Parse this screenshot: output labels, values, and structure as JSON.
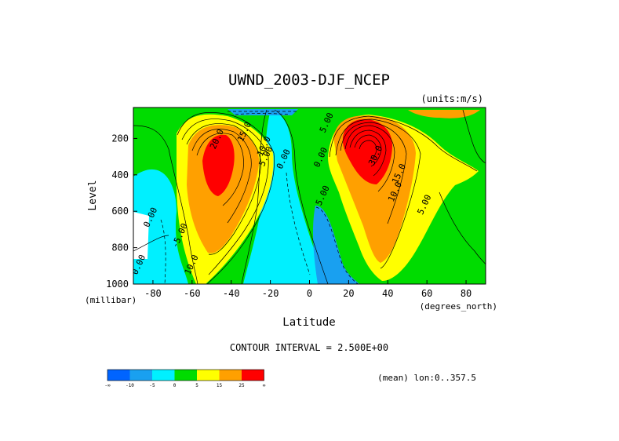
{
  "chart_data": {
    "type": "heatmap",
    "title": "UWND_2003-DJF_NCEP",
    "units_label": "(units:m/s)",
    "xlabel": "Latitude",
    "ylabel": "Level",
    "x_unit_label": "(degrees_north)",
    "y_unit_label": "(millibar)",
    "xlim": [
      -90,
      90
    ],
    "ylim": [
      1000,
      30
    ],
    "x_ticks": [
      -80,
      -60,
      -40,
      -20,
      0,
      20,
      40,
      60,
      80
    ],
    "y_ticks": [
      200,
      400,
      600,
      800,
      1000
    ],
    "contour_interval_text": "CONTOUR INTERVAL = 2.500E+00",
    "footer_text": "(mean) lon:0..357.5",
    "contour_labels": [
      {
        "text": "20.0",
        "lat": -46,
        "lev": 210
      },
      {
        "text": "15.0",
        "lat": -32,
        "lev": 170
      },
      {
        "text": "10.0",
        "lat": -22,
        "lev": 250
      },
      {
        "text": "5.00",
        "lat": -21,
        "lev": 305
      },
      {
        "text": "0.00",
        "lat": -12,
        "lev": 320
      },
      {
        "text": "0.00",
        "lat": -80,
        "lev": 640
      },
      {
        "text": "-5.00",
        "lat": -65,
        "lev": 740
      },
      {
        "text": "0.00",
        "lat": -86,
        "lev": 900
      },
      {
        "text": "10.0",
        "lat": -59,
        "lev": 900
      },
      {
        "text": "0.00",
        "lat": 7,
        "lev": 310
      },
      {
        "text": "5.00",
        "lat": 8,
        "lev": 520
      },
      {
        "text": "5.00",
        "lat": 10,
        "lev": 120
      },
      {
        "text": "30.0",
        "lat": 35,
        "lev": 300
      },
      {
        "text": "15.0",
        "lat": 47,
        "lev": 400
      },
      {
        "text": "10.0",
        "lat": 45,
        "lev": 500
      },
      {
        "text": "5.00",
        "lat": 60,
        "lev": 570
      }
    ],
    "color_bar": {
      "colors": [
        "#0064ff",
        "#19a0f0",
        "#00f0ff",
        "#00dc00",
        "#ffff00",
        "#ffa000",
        "#ff0000"
      ],
      "labels": [
        "-∞",
        "-10",
        "-5",
        "0",
        "5",
        "15",
        "25",
        "∞"
      ]
    }
  }
}
